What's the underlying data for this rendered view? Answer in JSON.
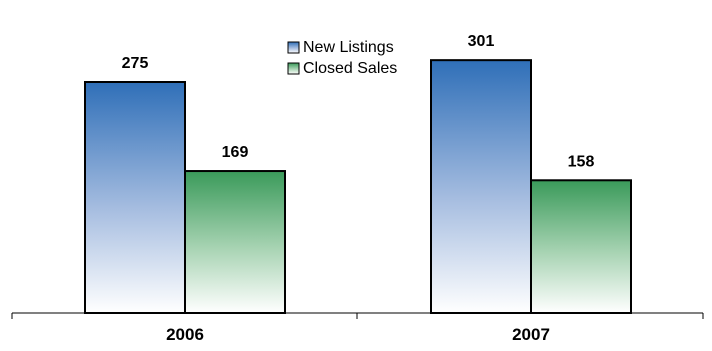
{
  "chart_data": {
    "type": "bar",
    "categories": [
      "2006",
      "2007"
    ],
    "series": [
      {
        "name": "New Listings",
        "values": [
          275,
          301
        ],
        "color": "#2f6fb8"
      },
      {
        "name": "Closed Sales",
        "values": [
          169,
          158
        ],
        "color": "#3a9a5a"
      }
    ],
    "ylim": [
      0,
      350
    ],
    "grid": false,
    "legend": "top-center",
    "data_labels": true,
    "title": "",
    "xlabel": "",
    "ylabel": ""
  }
}
